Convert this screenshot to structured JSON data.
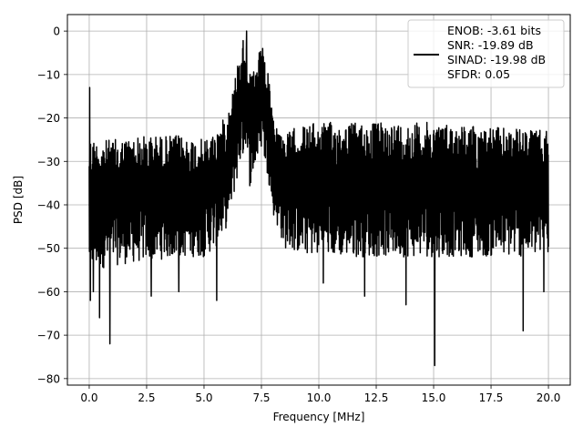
{
  "chart_data": {
    "type": "line",
    "title": "",
    "xlabel": "Frequency [MHz]",
    "ylabel": "PSD [dB]",
    "xlim": [
      -0.95,
      20.95
    ],
    "ylim": [
      -81.5,
      3.8
    ],
    "xticks": [
      0.0,
      2.5,
      5.0,
      7.5,
      10.0,
      12.5,
      15.0,
      17.5,
      20.0
    ],
    "xtick_labels": [
      "0.0",
      "2.5",
      "5.0",
      "7.5",
      "10.0",
      "12.5",
      "15.0",
      "17.5",
      "20.0"
    ],
    "yticks": [
      0,
      -10,
      -20,
      -30,
      -40,
      -50,
      -60,
      -70,
      -80
    ],
    "ytick_labels": [
      "0",
      "−10",
      "−20",
      "−30",
      "−40",
      "−50",
      "−60",
      "−70",
      "−80"
    ],
    "grid": true,
    "legend": {
      "placement": "top-right",
      "lines": [
        "ENOB: -3.61 bits",
        "SNR: -19.89 dB",
        "SINAD: -19.98 dB",
        "SFDR: 0.05"
      ]
    },
    "series": [
      {
        "color": "#000000",
        "points": 2000,
        "envelope": {
          "x": [
            0.0,
            0.3,
            1.0,
            2.5,
            4.0,
            5.0,
            5.5,
            6.0,
            6.3,
            6.6,
            6.8,
            7.0,
            7.2,
            7.5,
            7.8,
            8.0,
            8.5,
            9.0,
            10.0,
            12.5,
            15.0,
            17.5,
            20.0
          ],
          "upper": [
            -24,
            -25,
            -25,
            -24,
            -24,
            -25,
            -23,
            -19,
            -12,
            -3,
            0,
            -10,
            -9,
            -4,
            -10,
            -20,
            -24,
            -22,
            -21,
            -21,
            -21,
            -22,
            -23
          ],
          "lower": [
            -55,
            -55,
            -54,
            -53,
            -52,
            -52,
            -50,
            -45,
            -38,
            -30,
            -28,
            -36,
            -32,
            -27,
            -34,
            -42,
            -50,
            -51,
            -52,
            -52,
            -52,
            -52,
            -52
          ]
        },
        "spikes": [
          [
            0.02,
            -13
          ],
          [
            0.05,
            -62
          ],
          [
            0.18,
            -60
          ],
          [
            0.45,
            -66
          ],
          [
            0.9,
            -72
          ],
          [
            2.7,
            -61
          ],
          [
            3.9,
            -60
          ],
          [
            5.55,
            -62
          ],
          [
            6.4,
            -28
          ],
          [
            6.85,
            0
          ],
          [
            7.4,
            -5
          ],
          [
            7.55,
            -4
          ],
          [
            10.2,
            -58
          ],
          [
            12.0,
            -61
          ],
          [
            13.8,
            -63
          ],
          [
            15.05,
            -77
          ],
          [
            18.9,
            -69
          ],
          [
            19.8,
            -60
          ]
        ]
      }
    ]
  }
}
